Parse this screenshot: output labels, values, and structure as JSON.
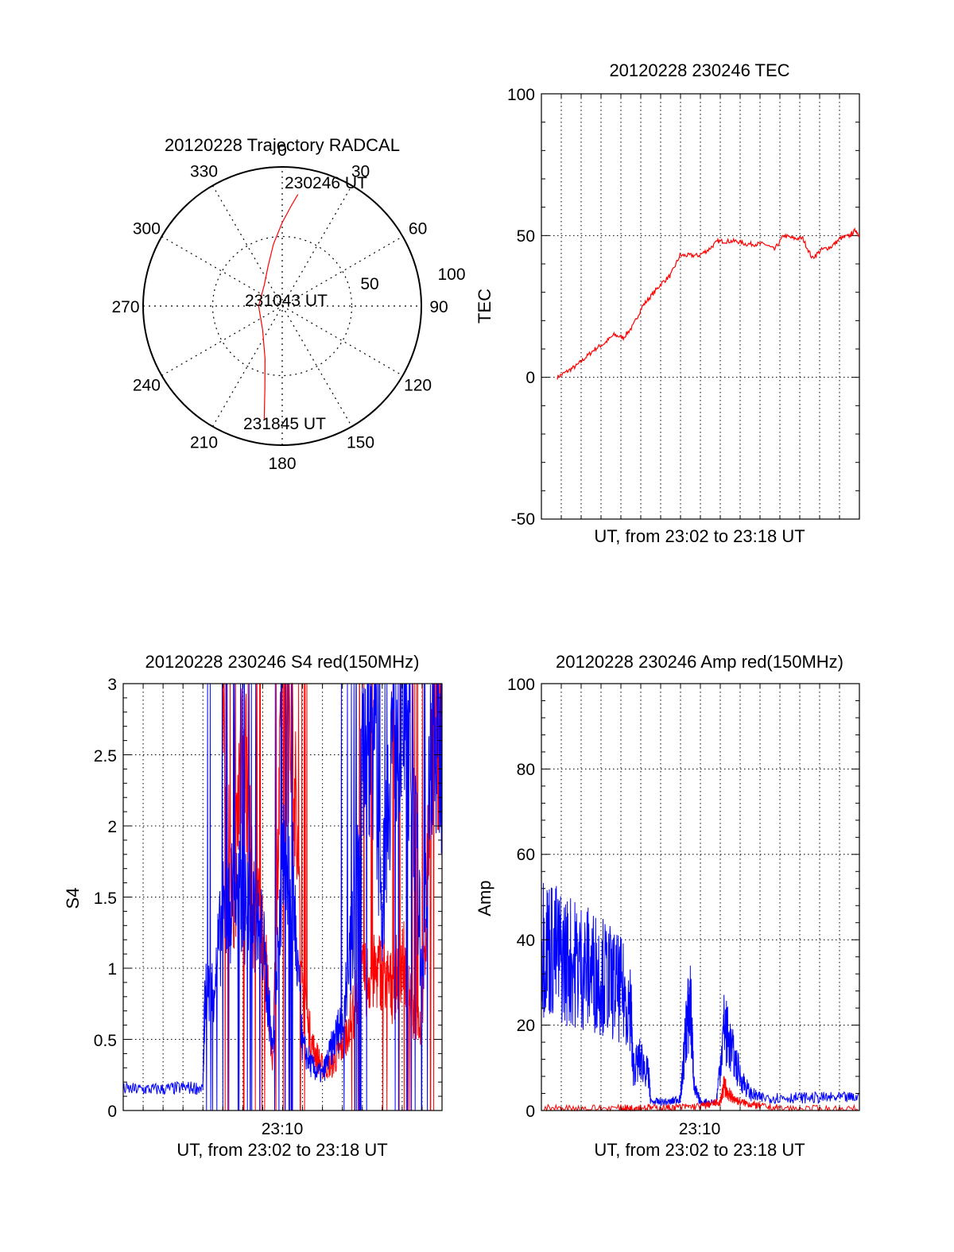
{
  "colors": {
    "red_series": "#ff0000",
    "blue_series": "#0000ff",
    "axis": "#000000",
    "grid": "#000000"
  },
  "chart_data": [
    {
      "id": "trajectory",
      "type": "polar",
      "title": "20120228 Trajectory RADCAL",
      "angle_ticks": [
        "0",
        "30",
        "60",
        "90",
        "120",
        "150",
        "180",
        "210",
        "240",
        "270",
        "300",
        "330"
      ],
      "radius_ticks": [
        "50",
        "100"
      ],
      "rlim": [
        0,
        100
      ],
      "grid": true,
      "annotations": [
        "230246 UT",
        "231043 UT",
        "231845 UT"
      ],
      "series": [
        {
          "color": "red",
          "points_az_r": [
            [
              8,
              81
            ],
            [
              5,
              72
            ],
            [
              0,
              60
            ],
            [
              -8,
              45
            ],
            [
              -20,
              30
            ],
            [
              -40,
              20
            ],
            [
              -90,
              17
            ],
            [
              -140,
              22
            ],
            [
              -162,
              40
            ],
            [
              -168,
              60
            ],
            [
              -171,
              83
            ]
          ]
        }
      ]
    },
    {
      "id": "tec",
      "type": "line",
      "title": "20120228 230246 TEC",
      "xlabel": "UT, from 23:02 to 23:18 UT",
      "ylabel": "TEC",
      "xlim": [
        0,
        16
      ],
      "ylim": [
        -50,
        100
      ],
      "yticks": [
        "-50",
        "0",
        "50",
        "100"
      ],
      "grid": true,
      "series": [
        {
          "color": "red",
          "x": [
            0.0,
            0.5,
            1.0,
            1.5,
            2.0,
            2.5,
            3.0,
            3.5,
            4.0,
            4.5,
            5.0,
            5.5,
            6.0,
            6.5,
            7.0,
            7.5,
            8.0,
            8.5,
            9.0,
            9.5,
            10.0,
            10.5,
            11.0,
            11.5,
            12.0,
            12.5,
            13.0,
            13.5,
            14.0,
            14.5,
            15.0,
            15.5,
            15.8,
            16.0
          ],
          "y": [
            0,
            2,
            4,
            7,
            10,
            12,
            15,
            14,
            18,
            25,
            29,
            33,
            36,
            43,
            43,
            43,
            45,
            48,
            48,
            48,
            47,
            47,
            47,
            45,
            50,
            49,
            49,
            42,
            45,
            46,
            49,
            50,
            52,
            50
          ]
        }
      ]
    },
    {
      "id": "s4",
      "type": "line",
      "title": "20120228 230246 S4 red(150MHz)",
      "xlabel": "UT, from 23:02 to 23:18 UT",
      "ylabel": "S4",
      "xlim": [
        0,
        16
      ],
      "ylim": [
        0,
        3
      ],
      "yticks": [
        "0",
        "0.5",
        "1",
        "1.5",
        "2",
        "2.5",
        "3"
      ],
      "xticks": [
        "23:10"
      ],
      "grid": true,
      "series": [
        {
          "color": "blue",
          "x": [
            0,
            1,
            2,
            3,
            4,
            4.1,
            4.5,
            5,
            5.5,
            6,
            6.5,
            7,
            7.5,
            8,
            8.5,
            9,
            9.5,
            10,
            10.5,
            11,
            11.5,
            12,
            12.5,
            13,
            13.5,
            14,
            14.5,
            15,
            15.5,
            16
          ],
          "y": [
            0.15,
            0.15,
            0.15,
            0.16,
            0.16,
            0.8,
            0.85,
            1.35,
            1.5,
            1.45,
            1.4,
            1.2,
            0.42,
            1.7,
            1.6,
            0.45,
            0.3,
            0.25,
            0.45,
            0.65,
            1.2,
            2.6,
            2.8,
            1.4,
            2.7,
            2.9,
            2.5,
            0.9,
            2.7,
            2.5
          ]
        },
        {
          "color": "red",
          "x": [
            5,
            5.5,
            6,
            6.5,
            7,
            7.5,
            8,
            8.5,
            9,
            9.5,
            10,
            10.5,
            11,
            11.5,
            12,
            12.5,
            13,
            13.5,
            14,
            14.5,
            15,
            15.5,
            16
          ],
          "y": [
            2.8,
            1.2,
            2.9,
            1.4,
            1.3,
            0.35,
            2.9,
            2.7,
            0.8,
            0.45,
            0.3,
            0.32,
            0.45,
            0.7,
            0.9,
            0.95,
            1.0,
            0.85,
            1.1,
            0.7,
            0.6,
            2.6,
            2.8
          ]
        }
      ]
    },
    {
      "id": "amp",
      "type": "line",
      "title": "20120228 230246 Amp red(150MHz)",
      "xlabel": "UT, from 23:02 to 23:18 UT",
      "ylabel": "Amp",
      "xlim": [
        0,
        16
      ],
      "ylim": [
        0,
        100
      ],
      "yticks": [
        "0",
        "20",
        "40",
        "60",
        "80",
        "100"
      ],
      "xticks": [
        "23:10"
      ],
      "grid": true,
      "series": [
        {
          "color": "blue",
          "x": [
            0,
            0.5,
            1,
            1.5,
            2,
            2.5,
            3,
            3.5,
            4,
            4.5,
            4.6,
            5,
            5.4,
            5.5,
            6,
            6.5,
            7,
            7.3,
            7.5,
            7.7,
            8,
            8.8,
            9.2,
            9.5,
            10,
            10.5,
            11,
            12,
            13,
            14,
            15,
            16
          ],
          "y": [
            40,
            38,
            36,
            35,
            34,
            33,
            32,
            30,
            28,
            25,
            10,
            12,
            8,
            2,
            2,
            2,
            3,
            20,
            25,
            5,
            2,
            2,
            20,
            15,
            8,
            4,
            3,
            3,
            3,
            3,
            3,
            3
          ]
        },
        {
          "color": "red",
          "x": [
            0,
            2,
            4,
            4.5,
            5,
            6,
            7,
            8,
            8.5,
            9,
            9.2,
            9.4,
            9.6,
            10,
            10.5,
            11,
            12,
            14,
            16
          ],
          "y": [
            0.5,
            0.5,
            0.5,
            0.5,
            0.8,
            0.5,
            0.8,
            1,
            1.5,
            2,
            6,
            4,
            3,
            2,
            1.5,
            1,
            0.5,
            0.3,
            0.3
          ]
        }
      ]
    }
  ]
}
